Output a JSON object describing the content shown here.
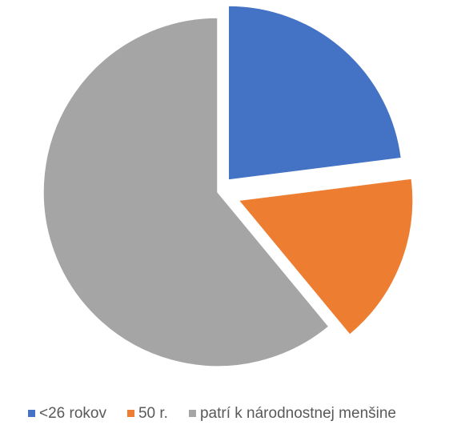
{
  "chart_data": {
    "type": "pie",
    "title": "",
    "categories": [
      "<26 rokov",
      "50 r.",
      "patrí k národnostnej menšine"
    ],
    "values": [
      23,
      16,
      61
    ],
    "colors": [
      "#4472C4",
      "#ED7D31",
      "#A5A5A5"
    ],
    "legend_position": "bottom",
    "exploded": true,
    "series": [
      {
        "values": [
          23,
          16,
          61
        ]
      }
    ]
  }
}
